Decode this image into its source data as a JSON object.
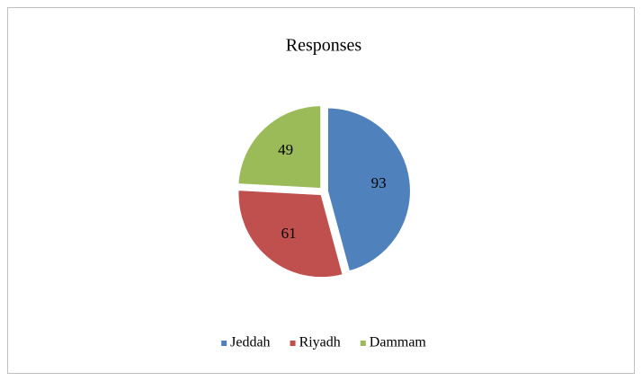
{
  "chart_data": {
    "type": "pie",
    "title": "Responses",
    "categories": [
      "Jeddah",
      "Riyadh",
      "Dammam"
    ],
    "values": [
      93,
      61,
      49
    ],
    "colors": [
      "#4f81bd",
      "#c0504d",
      "#9bbb59"
    ],
    "legend": "bottom"
  }
}
